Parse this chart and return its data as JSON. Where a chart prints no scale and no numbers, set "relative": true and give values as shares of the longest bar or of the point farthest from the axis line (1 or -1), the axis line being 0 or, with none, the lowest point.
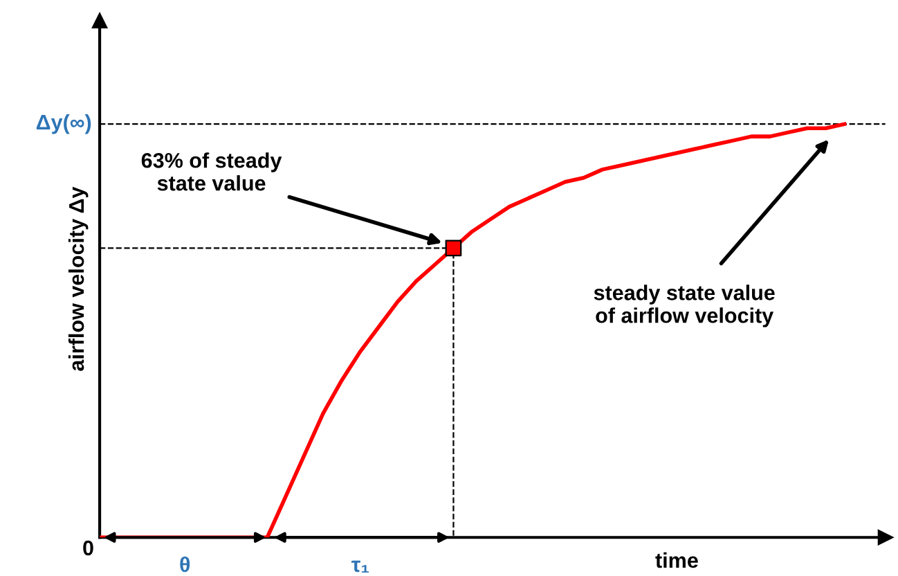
{
  "chart_data": {
    "type": "line",
    "relative": true,
    "xlabel": "time",
    "ylabel": "airflow velocity Δy",
    "categories": [
      null,
      null,
      null,
      null,
      null,
      null,
      null,
      null,
      null,
      null,
      null,
      null,
      null,
      null,
      null,
      null,
      null,
      null,
      null,
      null,
      null,
      null,
      null,
      null,
      null,
      null,
      null,
      null,
      null,
      null,
      null,
      null,
      null,
      null,
      null,
      null,
      null,
      null,
      null,
      null,
      null
    ],
    "series": [
      {
        "color": "#ff0000",
        "values": [
          0,
          0,
          0,
          0,
          0,
          0,
          0,
          0,
          0,
          0,
          0.1,
          0.2,
          0.3,
          0.38,
          0.45,
          0.51,
          0.57,
          0.62,
          0.66,
          0.7,
          0.74,
          0.77,
          0.8,
          0.82,
          0.84,
          0.86,
          0.87,
          0.89,
          0.9,
          0.91,
          0.92,
          0.93,
          0.94,
          0.95,
          0.96,
          0.97,
          0.97,
          0.98,
          0.99,
          0.99,
          1.0
        ]
      }
    ],
    "ref_lines": [
      {
        "axis": "y",
        "value": 1.0,
        "label": "Δy(∞)",
        "line_style": "dashed"
      },
      {
        "axis": "y",
        "value": 0.7,
        "line_style": "dashed"
      }
    ],
    "annotations": [
      {
        "text": "63% of steady\nstate value",
        "y": 0.7
      },
      "steady state value\nof airflow velocity",
      "0",
      "θ",
      "τ₁"
    ]
  }
}
